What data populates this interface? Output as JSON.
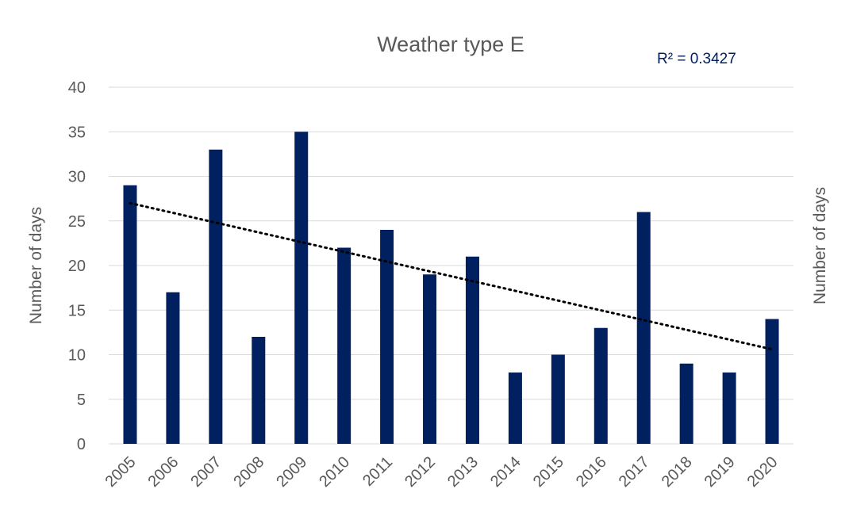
{
  "chart_data": {
    "type": "bar",
    "title": "Weather type E",
    "ylabel": "Number of days",
    "right_label": "Number of days",
    "annotation": "R² = 0.3427",
    "categories": [
      "2005",
      "2006",
      "2007",
      "2008",
      "2009",
      "2010",
      "2011",
      "2012",
      "2013",
      "2014",
      "2015",
      "2016",
      "2017",
      "2018",
      "2019",
      "2020"
    ],
    "values": [
      29,
      17,
      33,
      12,
      35,
      22,
      24,
      19,
      21,
      8,
      10,
      13,
      26,
      9,
      8,
      14
    ],
    "ylim": [
      0,
      40
    ],
    "yticks": [
      0,
      5,
      10,
      15,
      20,
      25,
      30,
      35,
      40
    ],
    "grid": true,
    "legend": "none",
    "trendline": {
      "type": "linear",
      "start": 27.0,
      "end": 10.6
    },
    "colors": {
      "bar": "#002060",
      "text": "#595959",
      "annotation": "#002060",
      "grid": "#d9d9d9",
      "trendline": "#000000"
    }
  }
}
